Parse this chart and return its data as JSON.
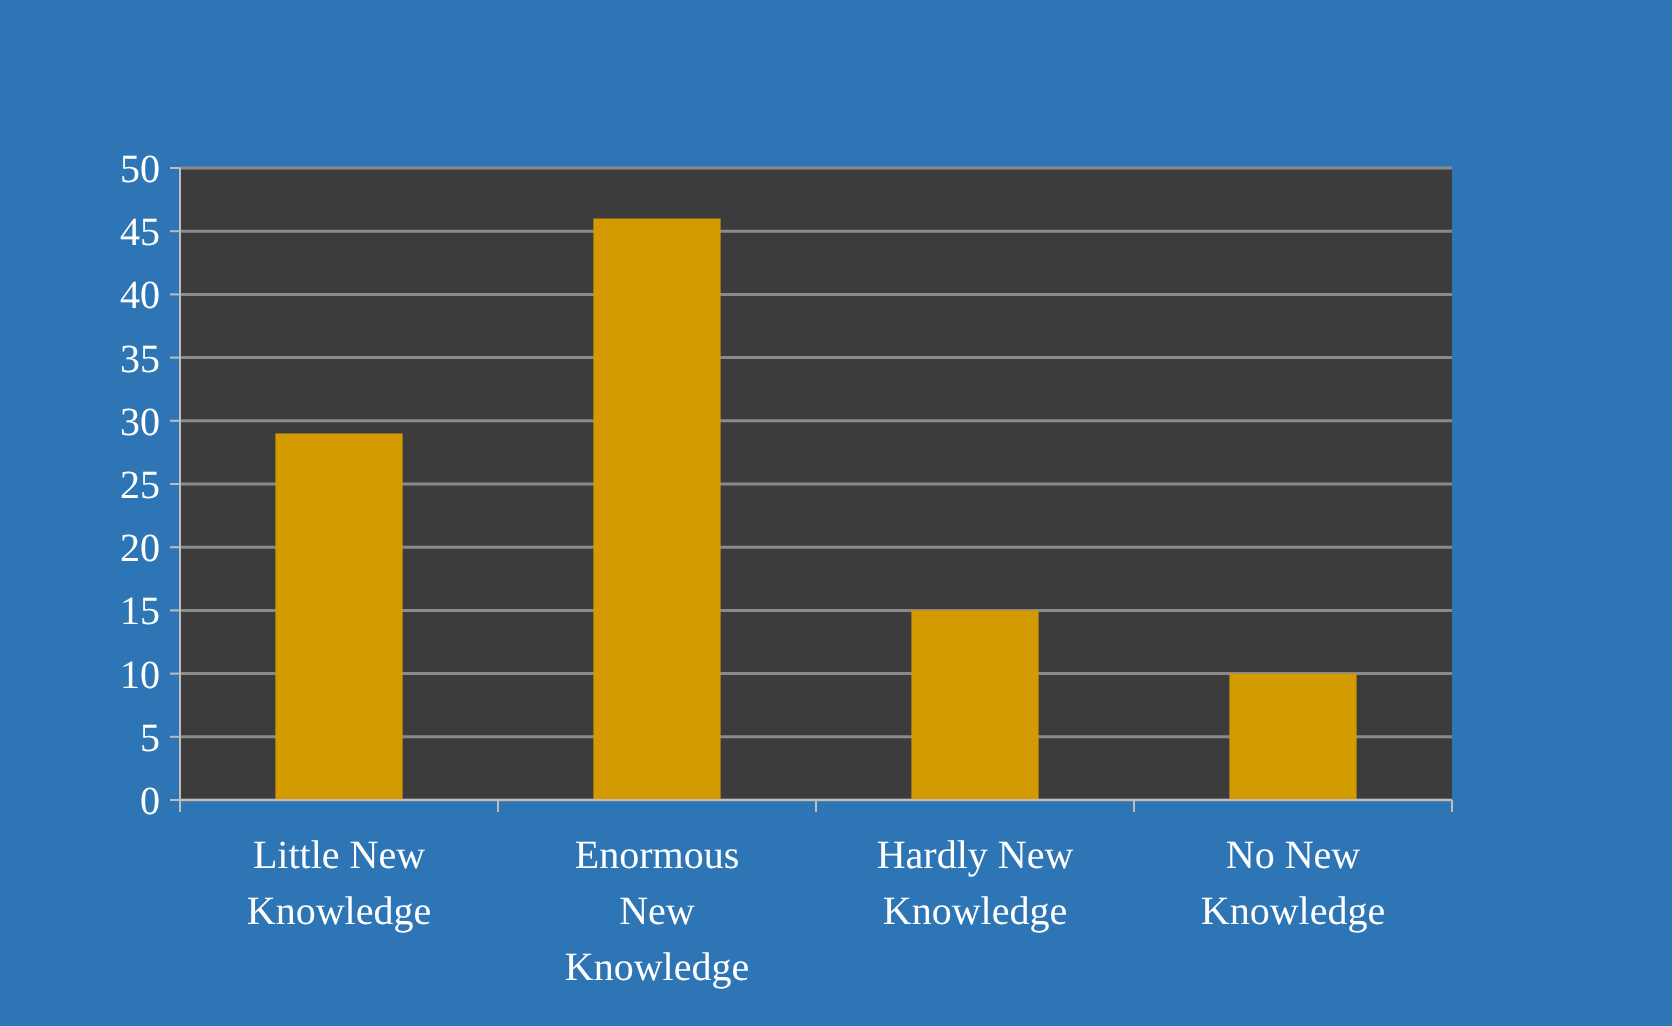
{
  "chart_data": {
    "type": "bar",
    "categories": [
      "Little New Knowledge",
      "Enormous New Knowledge",
      "Hardly New Knowledge",
      "No New Knowledge"
    ],
    "values": [
      29,
      46,
      15,
      10
    ],
    "color": "#d49b00",
    "ylim": [
      0,
      50
    ],
    "yticks": [
      0,
      5,
      10,
      15,
      20,
      25,
      30,
      35,
      40,
      45,
      50
    ],
    "grid": "y"
  }
}
